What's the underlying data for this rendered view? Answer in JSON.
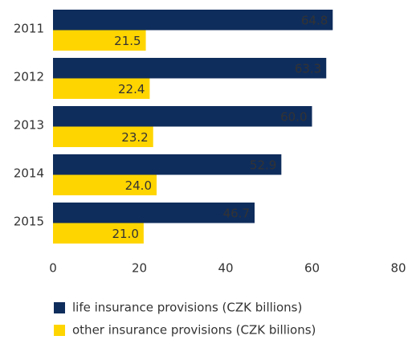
{
  "chart_data": {
    "type": "hbar",
    "categories": [
      "2011",
      "2012",
      "2013",
      "2014",
      "2015"
    ],
    "series": [
      {
        "name": "life insurance provisions (CZK billions)",
        "color": "#0f2d5c",
        "values": [
          64.8,
          63.3,
          60,
          52.9,
          46.7
        ],
        "value_labels": [
          "64.8",
          "63.3",
          "60.0",
          "52.9",
          "46.7"
        ]
      },
      {
        "name": "other insurance provisions (CZK billions)",
        "color": "#ffd500",
        "values": [
          21.5,
          22.4,
          23.2,
          24,
          21
        ],
        "value_labels": [
          "21.5",
          "22.4",
          "23.2",
          "24.0",
          "21.0"
        ]
      }
    ],
    "xlim": [
      0,
      80
    ],
    "xticks": [
      0,
      20,
      40,
      60,
      80
    ],
    "grid": false,
    "legend": "bottom"
  }
}
